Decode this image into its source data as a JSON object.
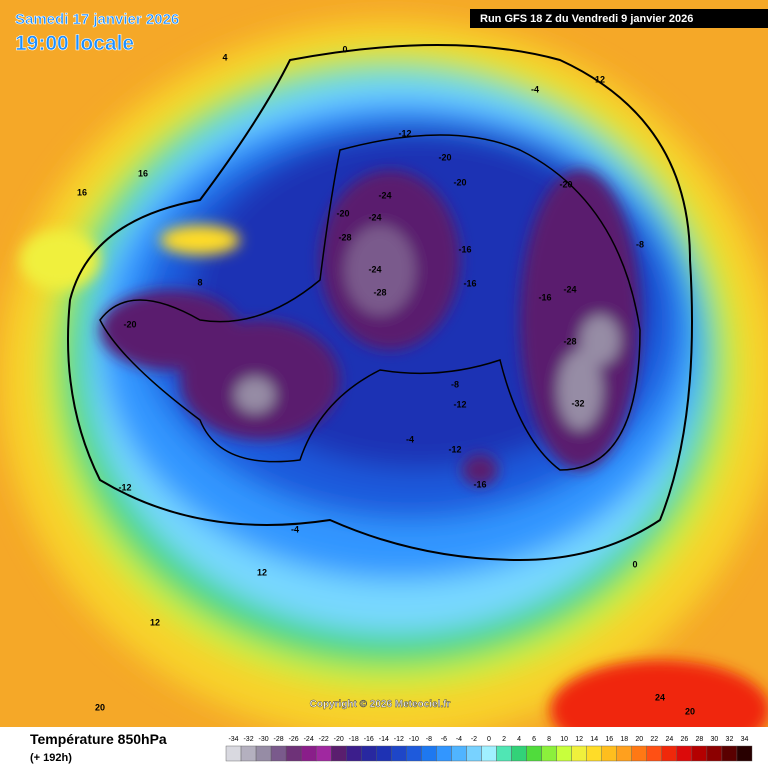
{
  "header": {
    "date": "Samedi 17 janvier 2026",
    "time": "19:00 locale",
    "run": "Run GFS 18 Z du Vendredi 9 janvier 2026"
  },
  "map": {
    "copyright": "Copyright © 2026 Meteociel.fr",
    "labels": [
      "-20",
      "-24",
      "-24",
      "-28",
      "-20",
      "-16",
      "-12",
      "-20",
      "-16",
      "-24",
      "-28",
      "-32",
      "-16",
      "-20",
      "-28",
      "-24",
      "-20",
      "-12",
      "-8",
      "-12",
      "-4",
      "-16",
      "-12",
      "-4",
      "0",
      "4",
      "8",
      "12",
      "16",
      "20",
      "12",
      "16",
      "24",
      "20",
      "-8",
      "12",
      "-4",
      "0"
    ]
  },
  "legend": {
    "title": "Température 850hPa",
    "subtitle": "(+ 192h)",
    "ticks": [
      -34,
      -32,
      -30,
      -28,
      -26,
      -24,
      -22,
      -20,
      -18,
      -16,
      -14,
      -12,
      -10,
      -8,
      -6,
      -4,
      -2,
      0,
      2,
      4,
      6,
      8,
      10,
      12,
      14,
      16,
      18,
      20,
      22,
      24,
      26,
      28,
      30,
      32,
      34
    ],
    "colors": [
      "#d9d9e0",
      "#b4b0bf",
      "#968ca5",
      "#7a5a8c",
      "#6e3278",
      "#8a1e8a",
      "#a028a0",
      "#5a1e6e",
      "#3c1e8c",
      "#2828a0",
      "#1e32b4",
      "#1e46c8",
      "#1e5adc",
      "#1e78f0",
      "#3296ff",
      "#50b4ff",
      "#78d2ff",
      "#a0f0ff",
      "#50e6b4",
      "#32d278",
      "#50dc3c",
      "#8cf03c",
      "#c8ff3c",
      "#f0f03c",
      "#ffdc28",
      "#ffbe1e",
      "#ffa01e",
      "#ff7814",
      "#ff5014",
      "#f0280a",
      "#dc0a0a",
      "#b40000",
      "#8c0000",
      "#5a0000",
      "#280000"
    ]
  }
}
